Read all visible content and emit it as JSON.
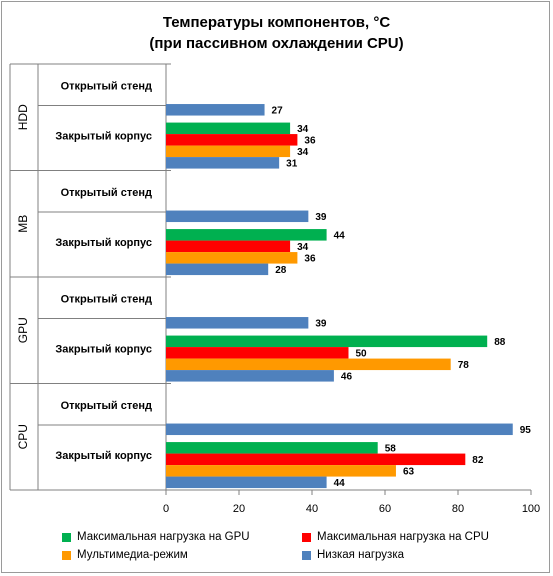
{
  "chart_data": {
    "type": "bar",
    "orientation": "horizontal",
    "title": "Температуры компонентов, °C",
    "subtitle": "(при пассивном охлаждении CPU)",
    "xlim": [
      0,
      100
    ],
    "xticks": [
      "0",
      "20",
      "40",
      "60",
      "80",
      "100"
    ],
    "grid": false,
    "legend_position": "bottom",
    "groups": [
      {
        "name": "HDD",
        "subgroups": [
          {
            "label": "Открытый стенд",
            "bars": [
              {
                "series": "Низкая нагрузка",
                "value": 27
              }
            ]
          },
          {
            "label": "Закрытый корпус",
            "bars": [
              {
                "series": "Максимальная нагрузка на GPU",
                "value": 34
              },
              {
                "series": "Максимальная нагрузка на CPU",
                "value": 36
              },
              {
                "series": "Мультимедиа-режим",
                "value": 34
              },
              {
                "series": "Низкая нагрузка",
                "value": 31
              }
            ]
          }
        ]
      },
      {
        "name": "MB",
        "subgroups": [
          {
            "label": "Открытый стенд",
            "bars": [
              {
                "series": "Низкая нагрузка",
                "value": 39
              }
            ]
          },
          {
            "label": "Закрытый корпус",
            "bars": [
              {
                "series": "Максимальная нагрузка на GPU",
                "value": 44
              },
              {
                "series": "Максимальная нагрузка на CPU",
                "value": 34
              },
              {
                "series": "Мультимедиа-режим",
                "value": 36
              },
              {
                "series": "Низкая нагрузка",
                "value": 28
              }
            ]
          }
        ]
      },
      {
        "name": "GPU",
        "subgroups": [
          {
            "label": "Открытый стенд",
            "bars": [
              {
                "series": "Низкая нагрузка",
                "value": 39
              }
            ]
          },
          {
            "label": "Закрытый корпус",
            "bars": [
              {
                "series": "Максимальная нагрузка на GPU",
                "value": 88
              },
              {
                "series": "Максимальная нагрузка на CPU",
                "value": 50
              },
              {
                "series": "Мультимедиа-режим",
                "value": 78
              },
              {
                "series": "Низкая нагрузка",
                "value": 46
              }
            ]
          }
        ]
      },
      {
        "name": "CPU",
        "subgroups": [
          {
            "label": "Открытый стенд",
            "bars": [
              {
                "series": "Низкая нагрузка",
                "value": 95
              }
            ]
          },
          {
            "label": "Закрытый корпус",
            "bars": [
              {
                "series": "Максимальная нагрузка на GPU",
                "value": 58
              },
              {
                "series": "Максимальная нагрузка на CPU",
                "value": 82
              },
              {
                "series": "Мультимедиа-режим",
                "value": 63
              },
              {
                "series": "Низкая нагрузка",
                "value": 44
              }
            ]
          }
        ]
      }
    ],
    "series": [
      {
        "name": "Максимальная нагрузка на GPU",
        "color": "#00b050"
      },
      {
        "name": "Максимальная нагрузка на CPU",
        "color": "#ff0000"
      },
      {
        "name": "Мультимедиа-режим",
        "color": "#ff9900"
      },
      {
        "name": "Низкая нагрузка",
        "color": "#4f81bd"
      }
    ]
  }
}
